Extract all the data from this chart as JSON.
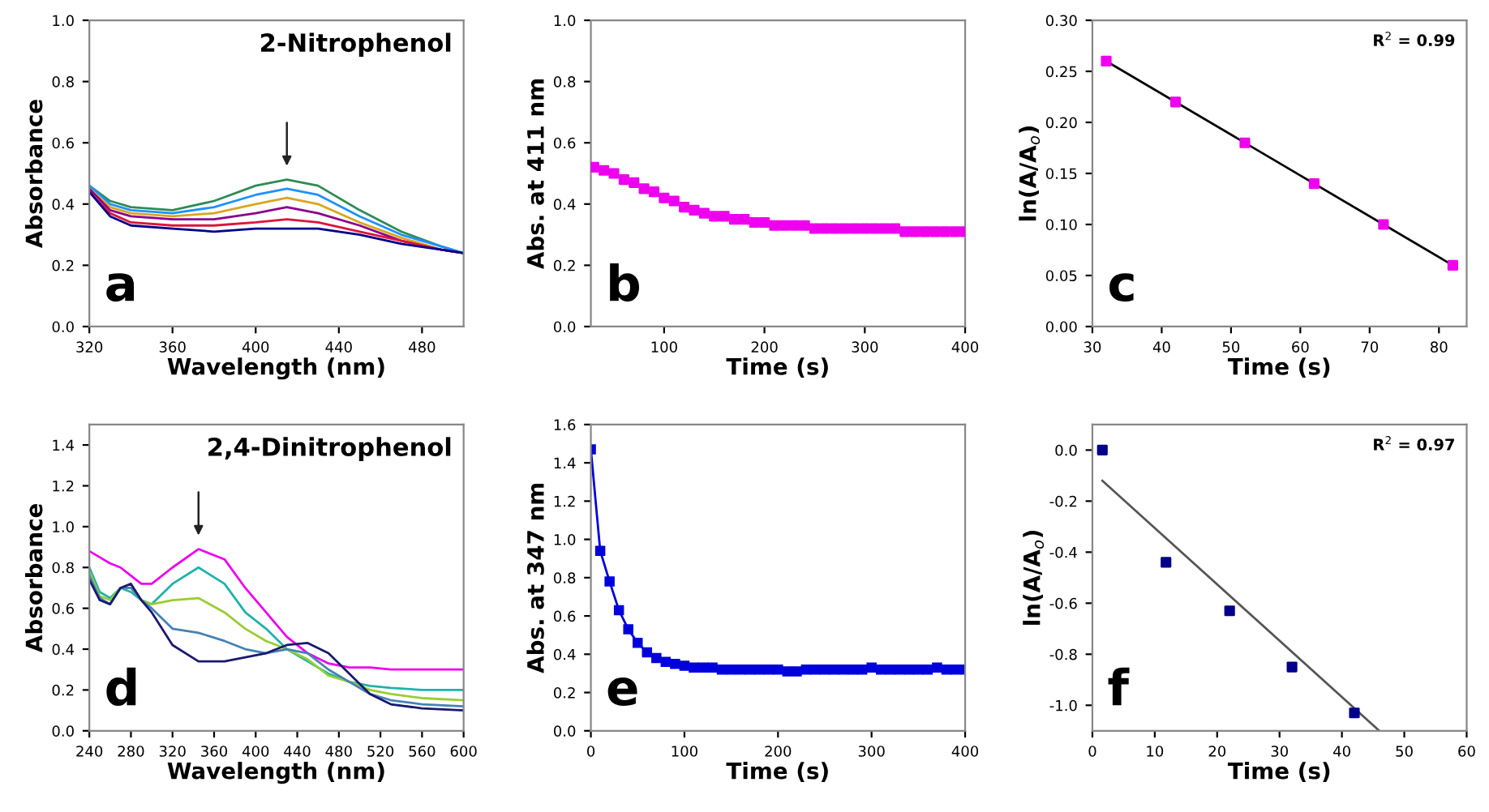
{
  "chart_data": [
    {
      "type": "line",
      "title": "2-Nitrophenol",
      "xlabel": "Wavelength (nm)",
      "ylabel": "Absorbance",
      "xlim": [
        320,
        500
      ],
      "ylim": [
        0,
        1.0
      ],
      "xticks": [
        320,
        360,
        400,
        440,
        480
      ],
      "yticks": [
        {
          "value": 0,
          "label": "0.0"
        },
        0.2,
        0.4,
        0.6,
        0.8,
        {
          "value": 1,
          "label": "1.0"
        }
      ],
      "annotations": [
        "a"
      ],
      "x": [
        320,
        330,
        340,
        360,
        380,
        400,
        415,
        430,
        450,
        470,
        490,
        500
      ],
      "series": [
        {
          "color": "#2e8b57",
          "marker": "none",
          "values": [
            0.46,
            0.41,
            0.39,
            0.38,
            0.41,
            0.46,
            0.48,
            0.46,
            0.38,
            0.31,
            0.26,
            0.24
          ]
        },
        {
          "color": "#1e90ff",
          "marker": "none",
          "values": [
            0.46,
            0.4,
            0.38,
            0.37,
            0.39,
            0.43,
            0.45,
            0.43,
            0.36,
            0.3,
            0.26,
            0.24
          ]
        },
        {
          "color": "#daa520",
          "marker": "none",
          "values": [
            0.45,
            0.39,
            0.37,
            0.36,
            0.37,
            0.4,
            0.42,
            0.4,
            0.34,
            0.29,
            0.25,
            0.24
          ]
        },
        {
          "color": "#8b008b",
          "marker": "none",
          "values": [
            0.45,
            0.38,
            0.36,
            0.35,
            0.35,
            0.37,
            0.39,
            0.37,
            0.33,
            0.28,
            0.25,
            0.24
          ]
        },
        {
          "color": "#dc143c",
          "marker": "none",
          "values": [
            0.44,
            0.37,
            0.34,
            0.33,
            0.33,
            0.34,
            0.35,
            0.34,
            0.31,
            0.28,
            0.25,
            0.24
          ]
        },
        {
          "color": "#00008b",
          "marker": "none",
          "values": [
            0.44,
            0.36,
            0.33,
            0.32,
            0.31,
            0.32,
            0.32,
            0.32,
            0.3,
            0.27,
            0.25,
            0.24
          ]
        }
      ]
    },
    {
      "type": "scatter",
      "xlabel": "Time (s)",
      "ylabel": "Abs. at 411 nm",
      "xlim": [
        27,
        400
      ],
      "ylim": [
        0,
        1.0
      ],
      "xticks": [
        100,
        200,
        300,
        400
      ],
      "yticks": [
        {
          "value": 0,
          "label": "0.0"
        },
        0.2,
        0.4,
        0.6,
        0.8,
        {
          "value": 1,
          "label": "1.0"
        }
      ],
      "annotations": [
        "b"
      ],
      "x": [
        30,
        40,
        50,
        60,
        70,
        80,
        90,
        100,
        110,
        120,
        130,
        140,
        150,
        160,
        170,
        180,
        190,
        200,
        210,
        220,
        230,
        240,
        250,
        260,
        270,
        280,
        290,
        300,
        310,
        320,
        330,
        340,
        350,
        360,
        370,
        380,
        390,
        400
      ],
      "series": [
        {
          "color": "#ee00ee",
          "marker": "square",
          "values": [
            0.52,
            0.51,
            0.5,
            0.48,
            0.47,
            0.45,
            0.44,
            0.42,
            0.41,
            0.39,
            0.38,
            0.37,
            0.36,
            0.36,
            0.35,
            0.35,
            0.34,
            0.34,
            0.33,
            0.33,
            0.33,
            0.33,
            0.32,
            0.32,
            0.32,
            0.32,
            0.32,
            0.32,
            0.32,
            0.32,
            0.32,
            0.31,
            0.31,
            0.31,
            0.31,
            0.31,
            0.31,
            0.31
          ]
        }
      ]
    },
    {
      "type": "scatter",
      "xlabel": "Time (s)",
      "ylabel": "ln(A/A$_{o}$)",
      "xlim": [
        30,
        84
      ],
      "ylim": [
        0,
        0.3
      ],
      "xticks": [
        30,
        40,
        50,
        60,
        70,
        80
      ],
      "yticks": [
        {
          "value": 0,
          "label": "0.00"
        },
        0.05,
        {
          "value": 0.1,
          "label": "0.10"
        },
        0.15,
        {
          "value": 0.2,
          "label": "0.20"
        },
        0.25,
        {
          "value": 0.3,
          "label": "0.30"
        }
      ],
      "annotations": [
        "c",
        "R$^{2}$ = 0.99"
      ],
      "x": [
        32,
        42,
        52,
        62,
        72,
        82
      ],
      "series": [
        {
          "color": "#ee00ee",
          "marker": "square",
          "values": [
            0.26,
            0.22,
            0.18,
            0.14,
            0.1,
            0.06
          ]
        },
        {
          "type": "line",
          "color": "#000000",
          "marker": "none",
          "x": [
            32,
            82
          ],
          "values": [
            0.26,
            0.06
          ]
        }
      ]
    },
    {
      "type": "line",
      "title": "2,4-Dinitrophenol",
      "xlabel": "Wavelength (nm)",
      "ylabel": "Absorbance",
      "xlim": [
        240,
        600
      ],
      "ylim": [
        0,
        1.5
      ],
      "xticks": [
        240,
        280,
        320,
        360,
        400,
        440,
        480,
        520,
        560,
        600
      ],
      "yticks": [
        {
          "value": 0,
          "label": "0.0"
        },
        0.2,
        0.4,
        0.6,
        0.8,
        {
          "value": 1,
          "label": "1.0"
        },
        1.2,
        1.4
      ],
      "annotations": [
        "d"
      ],
      "x": [
        240,
        250,
        260,
        270,
        280,
        290,
        300,
        320,
        345,
        370,
        390,
        410,
        430,
        450,
        470,
        490,
        510,
        530,
        560,
        600
      ],
      "series": [
        {
          "color": "#ee00ee",
          "marker": "none",
          "values": [
            0.88,
            0.85,
            0.82,
            0.8,
            0.76,
            0.72,
            0.72,
            0.8,
            0.89,
            0.84,
            0.7,
            0.58,
            0.46,
            0.38,
            0.33,
            0.31,
            0.31,
            0.3,
            0.3,
            0.3
          ]
        },
        {
          "color": "#20b2aa",
          "marker": "none",
          "values": [
            0.8,
            0.68,
            0.65,
            0.7,
            0.68,
            0.64,
            0.62,
            0.72,
            0.8,
            0.72,
            0.58,
            0.5,
            0.4,
            0.34,
            0.28,
            0.24,
            0.22,
            0.21,
            0.2,
            0.2
          ]
        },
        {
          "color": "#9acd32",
          "marker": "none",
          "values": [
            0.78,
            0.66,
            0.64,
            0.7,
            0.7,
            0.64,
            0.62,
            0.64,
            0.65,
            0.58,
            0.5,
            0.44,
            0.4,
            0.35,
            0.27,
            0.24,
            0.2,
            0.18,
            0.16,
            0.15
          ]
        },
        {
          "color": "#4682b4",
          "marker": "none",
          "values": [
            0.76,
            0.65,
            0.62,
            0.7,
            0.7,
            0.64,
            0.6,
            0.5,
            0.48,
            0.44,
            0.4,
            0.38,
            0.4,
            0.38,
            0.3,
            0.24,
            0.18,
            0.15,
            0.13,
            0.12
          ]
        },
        {
          "color": "#191970",
          "marker": "none",
          "values": [
            0.74,
            0.64,
            0.62,
            0.7,
            0.72,
            0.64,
            0.58,
            0.42,
            0.34,
            0.34,
            0.36,
            0.38,
            0.42,
            0.43,
            0.38,
            0.28,
            0.18,
            0.13,
            0.11,
            0.1
          ]
        }
      ]
    },
    {
      "type": "line",
      "xlabel": "Time (s)",
      "ylabel": "Abs. at 347 nm",
      "xlim": [
        0,
        400
      ],
      "ylim": [
        0,
        1.6
      ],
      "xticks": [
        0,
        100,
        200,
        300,
        400
      ],
      "yticks": [
        {
          "value": 0,
          "label": "0.0"
        },
        0.2,
        0.4,
        0.6,
        0.8,
        {
          "value": 1,
          "label": "1.0"
        },
        1.2,
        1.4,
        1.6
      ],
      "annotations": [
        "e"
      ],
      "x": [
        0,
        10,
        20,
        30,
        40,
        50,
        60,
        70,
        80,
        90,
        100,
        110,
        120,
        130,
        140,
        150,
        160,
        170,
        180,
        190,
        200,
        210,
        220,
        230,
        240,
        250,
        260,
        270,
        280,
        290,
        300,
        310,
        320,
        330,
        340,
        350,
        360,
        370,
        380,
        390,
        400
      ],
      "series": [
        {
          "color": "#0000dd",
          "marker": "square",
          "values": [
            1.47,
            0.94,
            0.78,
            0.63,
            0.53,
            0.46,
            0.41,
            0.38,
            0.36,
            0.35,
            0.34,
            0.33,
            0.33,
            0.33,
            0.32,
            0.32,
            0.32,
            0.32,
            0.32,
            0.32,
            0.32,
            0.31,
            0.31,
            0.32,
            0.32,
            0.32,
            0.32,
            0.32,
            0.32,
            0.32,
            0.33,
            0.32,
            0.32,
            0.32,
            0.32,
            0.32,
            0.32,
            0.33,
            0.32,
            0.32,
            0.32
          ]
        }
      ]
    },
    {
      "type": "scatter",
      "xlabel": "Time (s)",
      "ylabel": "ln(A/A$_{o}$)",
      "xlim": [
        0,
        60
      ],
      "ylim": [
        -1.1,
        0.1
      ],
      "xticks": [
        0,
        10,
        20,
        30,
        40,
        50,
        60
      ],
      "yticks": [
        {
          "value": -1,
          "label": "-1.0"
        },
        -0.8,
        -0.6,
        -0.4,
        -0.2,
        {
          "value": 0,
          "label": "0.0"
        }
      ],
      "annotations": [
        "f",
        "R$^{2}$ = 0.97"
      ],
      "x": [
        1.6,
        11.8,
        22,
        32,
        42
      ],
      "series": [
        {
          "color": "#00008b",
          "marker": "square",
          "values": [
            0.0,
            -0.44,
            -0.63,
            -0.85,
            -1.03
          ]
        },
        {
          "type": "line",
          "color": "#555555",
          "marker": "none",
          "x": [
            1.6,
            46
          ],
          "values": [
            -0.12,
            -1.1
          ]
        }
      ]
    }
  ]
}
